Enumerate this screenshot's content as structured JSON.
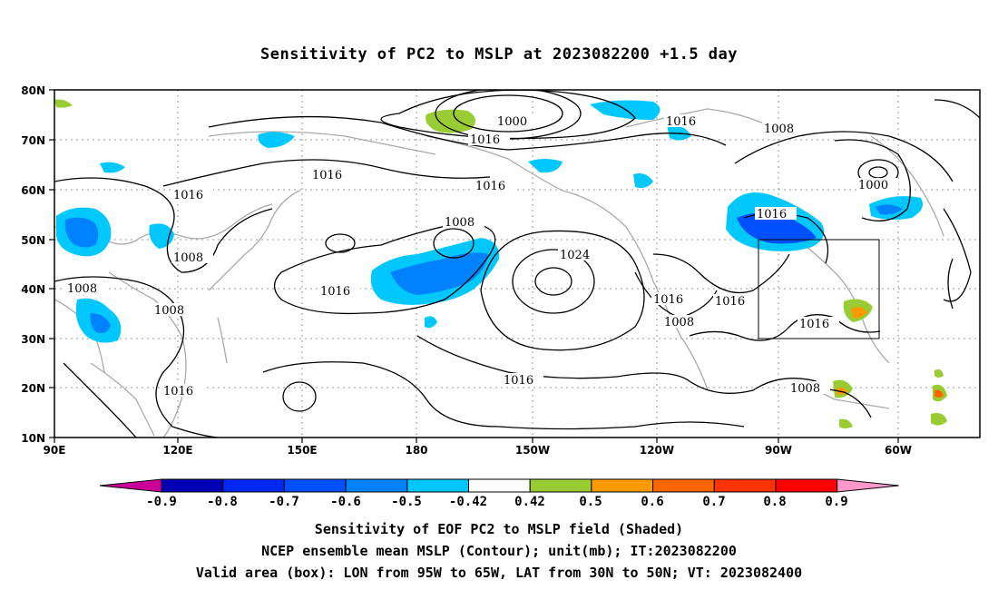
{
  "title": "Sensitivity of PC2 to MSLP at 2023082200 +1.5 day",
  "axes": {
    "lat_labels": [
      "80N",
      "70N",
      "60N",
      "50N",
      "40N",
      "30N",
      "20N",
      "10N"
    ],
    "lon_labels": [
      "90E",
      "120E",
      "150E",
      "180",
      "150W",
      "120W",
      "90W",
      "60W"
    ]
  },
  "contour_labels": [
    "1000",
    "1016",
    "1016",
    "1008",
    "1000",
    "1016",
    "1016",
    "1016",
    "1008",
    "1016",
    "1016",
    "1008",
    "1008",
    "1008",
    "1016",
    "1024",
    "1016",
    "1016",
    "1008",
    "1016",
    "1016",
    "1008",
    "1008"
  ],
  "colorbar": {
    "labels": [
      "-0.9",
      "-0.8",
      "-0.7",
      "-0.6",
      "-0.5",
      "-0.42",
      "0.42",
      "0.5",
      "0.6",
      "0.7",
      "0.8",
      "0.9"
    ],
    "colors": [
      "#cc0099",
      "#0000b4",
      "#0028f0",
      "#0050ff",
      "#0082ff",
      "#00c8ff",
      "#ffffff",
      "#99cc33",
      "#ff9900",
      "#ff6600",
      "#ff3300",
      "#ff0000",
      "#ff99cc"
    ]
  },
  "valid_box": {
    "lon": [
      "95W",
      "65W"
    ],
    "lat": [
      "30N",
      "50N"
    ]
  },
  "captions": {
    "line1": "Sensitivity of EOF PC2 to MSLP field (Shaded)",
    "line2": "NCEP ensemble mean MSLP (Contour); unit(mb); IT:2023082200",
    "line3": "Valid area (box): LON from 95W to 65W, LAT from 30N to 50N; VT: 2023082400"
  }
}
